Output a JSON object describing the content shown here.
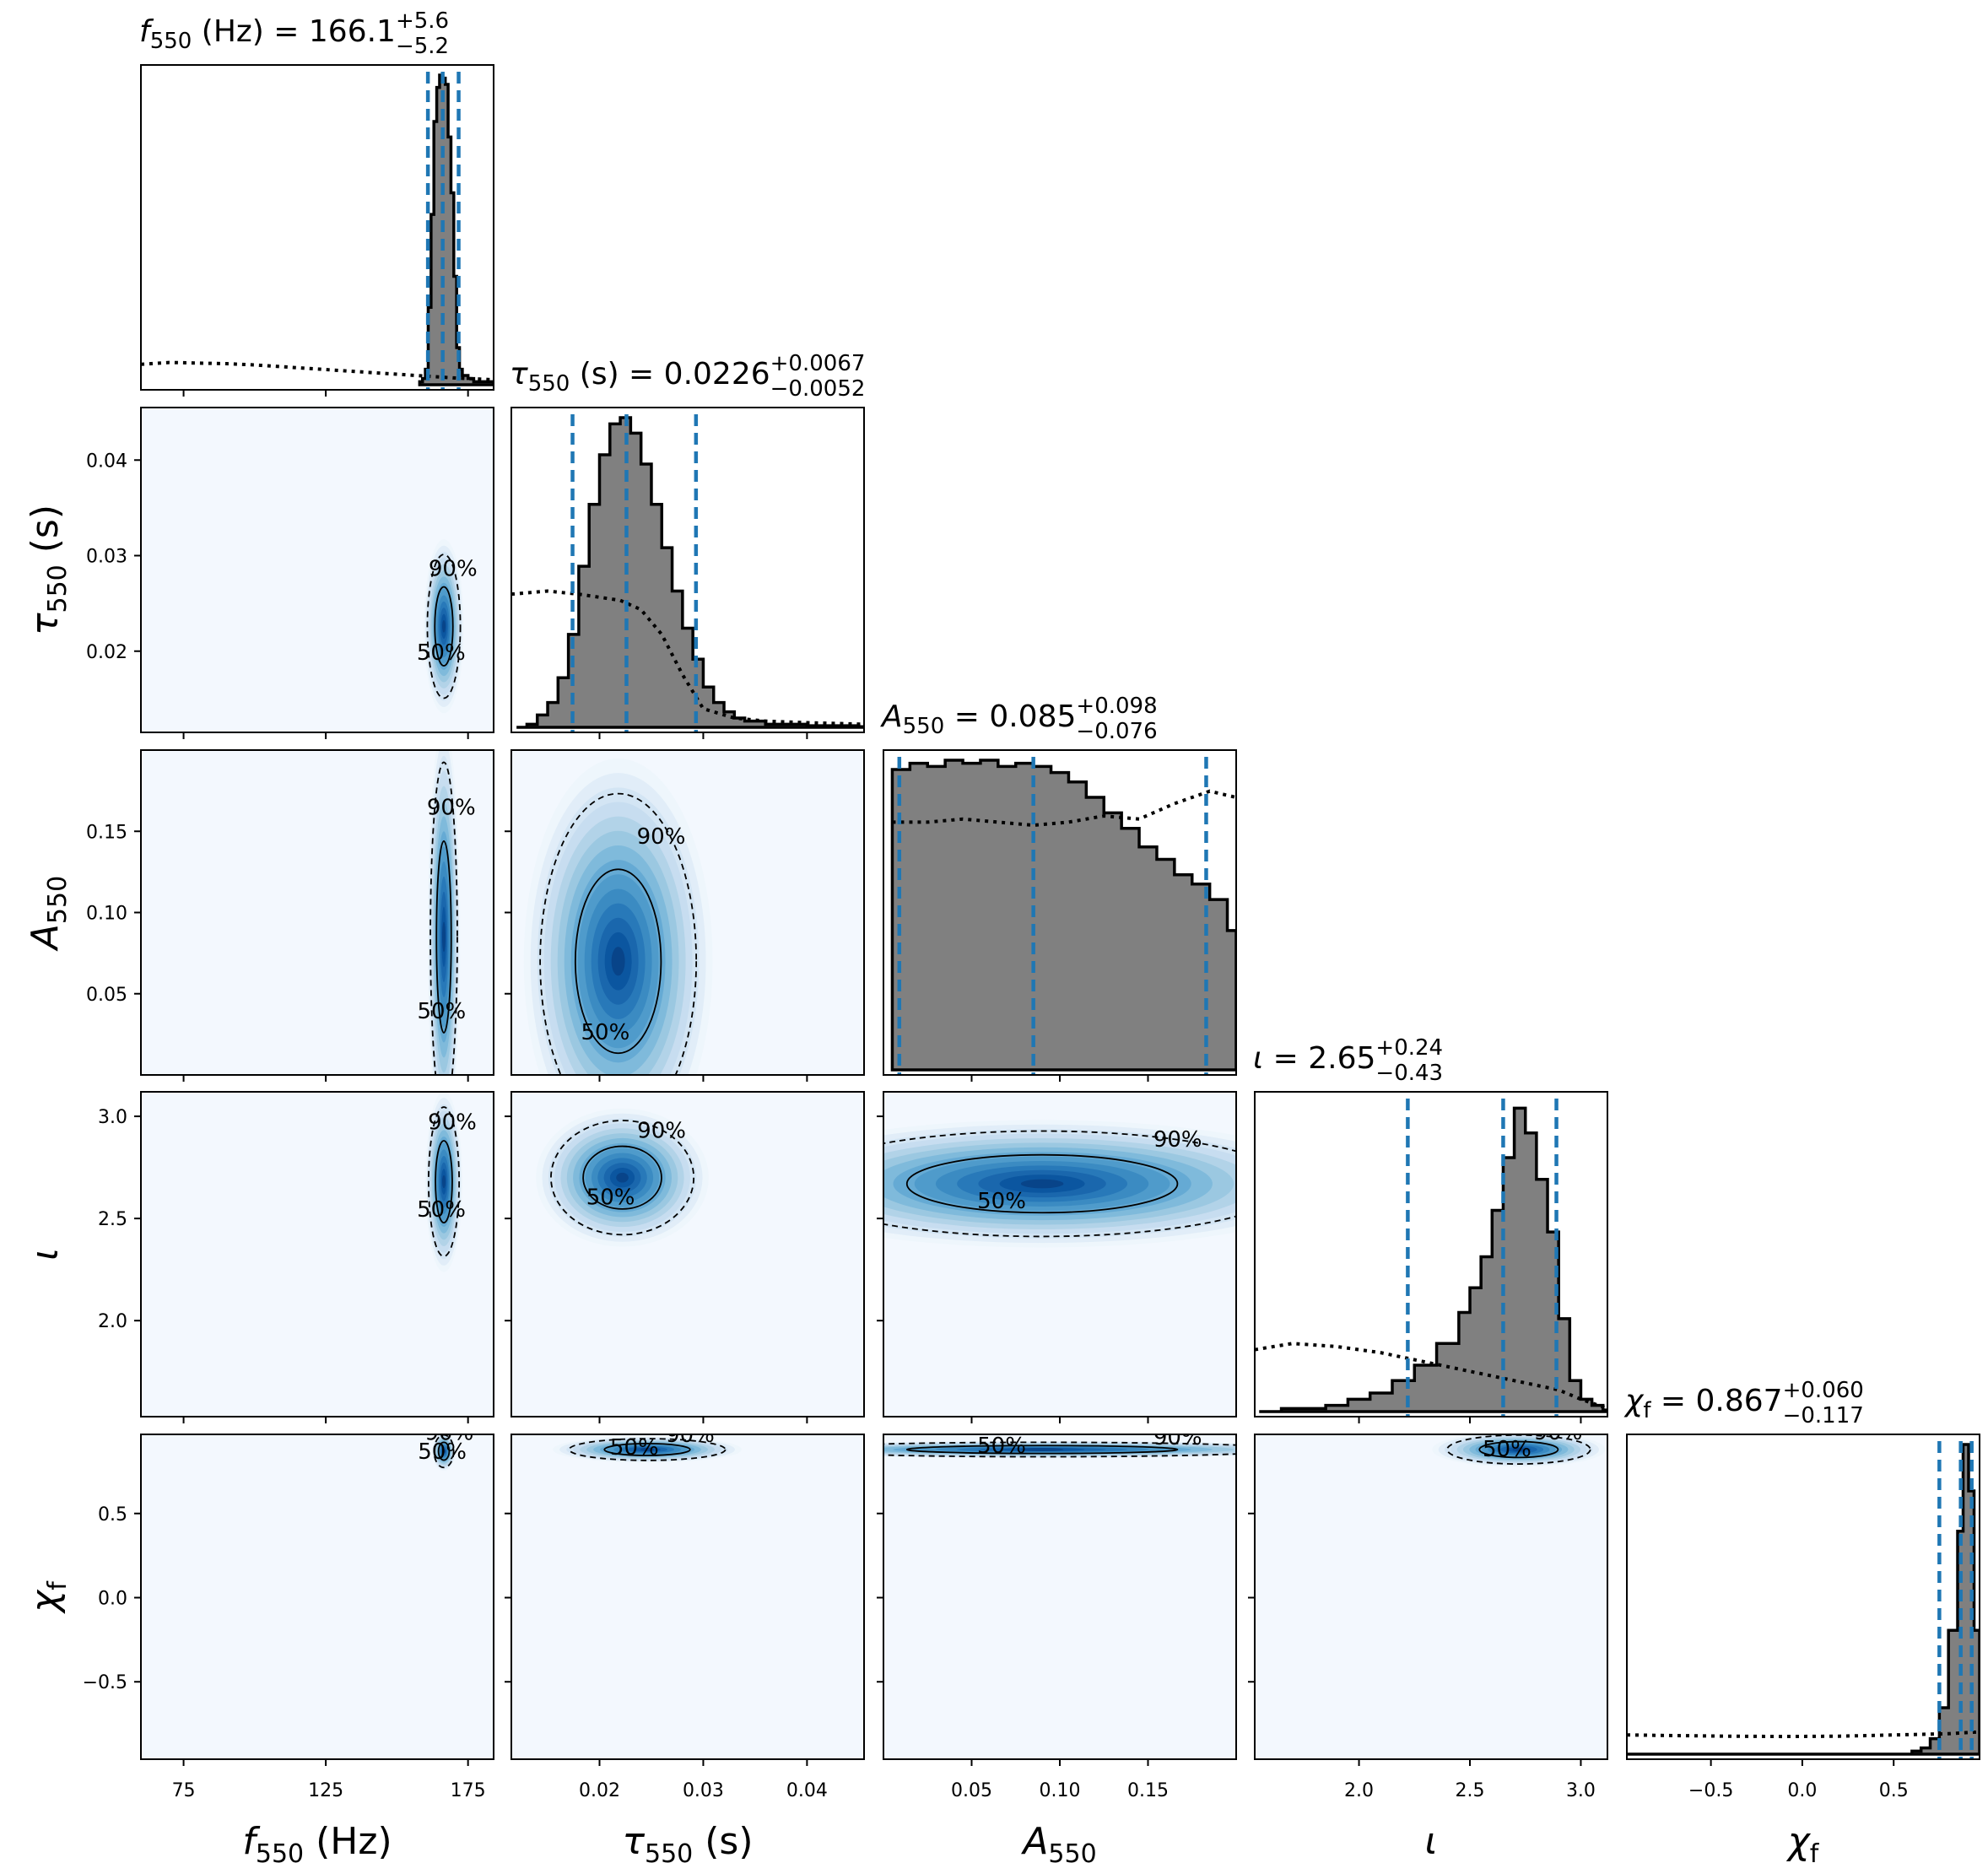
{
  "chart_data": {
    "type": "corner",
    "parameters": [
      {
        "id": "f550",
        "label": "f550 (Hz)",
        "label_base": "f",
        "label_sub": "550",
        "label_unit": " (Hz)",
        "title": {
          "base": "f",
          "sub": "550",
          "unit": " (Hz)",
          "median": "166.1",
          "plus": "+5.6",
          "minus": "−5.2"
        },
        "range": [
          60,
          184
        ],
        "ticks": [
          75,
          125,
          175
        ],
        "tick_labels": [
          "75",
          "125",
          "175"
        ],
        "quantiles": [
          160.9,
          166.1,
          171.7
        ]
      },
      {
        "id": "tau550",
        "label": "τ550 (s)",
        "label_base": "τ",
        "label_sub": "550",
        "label_unit": " (s)",
        "title": {
          "base": "τ",
          "sub": "550",
          "unit": " (s)",
          "median": "0.0226",
          "plus": "+0.0067",
          "minus": "−0.0052"
        },
        "range": [
          0.0115,
          0.0455
        ],
        "ticks": [
          0.02,
          0.03,
          0.04
        ],
        "tick_labels": [
          "0.02",
          "0.03",
          "0.04"
        ],
        "quantiles": [
          0.0174,
          0.0226,
          0.0293
        ]
      },
      {
        "id": "A550",
        "label": "A550",
        "label_base": "A",
        "label_sub": "550",
        "label_unit": "",
        "title": {
          "base": "A",
          "sub": "550",
          "unit": "",
          "median": "0.085",
          "plus": "+0.098",
          "minus": "−0.076"
        },
        "range": [
          0.0,
          0.2
        ],
        "ticks": [
          0.05,
          0.1,
          0.15
        ],
        "tick_labels": [
          "0.05",
          "0.10",
          "0.15"
        ],
        "quantiles": [
          0.009,
          0.085,
          0.183
        ]
      },
      {
        "id": "iota",
        "label": "ι",
        "label_base": "ι",
        "label_sub": "",
        "label_unit": "",
        "title": {
          "base": "ι",
          "sub": "",
          "unit": "",
          "median": "2.65",
          "plus": "+0.24",
          "minus": "−0.43"
        },
        "range": [
          1.53,
          3.12
        ],
        "ticks": [
          2.0,
          2.5,
          3.0
        ],
        "tick_labels": [
          "2.0",
          "2.5",
          "3.0"
        ],
        "quantiles": [
          2.22,
          2.65,
          2.89
        ]
      },
      {
        "id": "chif",
        "label": "χf",
        "label_base": "χ",
        "label_sub": "f",
        "label_unit": "",
        "title": {
          "base": "χ",
          "sub": "f",
          "unit": "",
          "median": "0.867",
          "plus": "+0.060",
          "minus": "−0.117"
        },
        "range": [
          -0.96,
          0.97
        ],
        "ticks": [
          -0.5,
          0.0,
          0.5
        ],
        "tick_labels": [
          "−0.5",
          "0.0",
          "0.5"
        ],
        "quantiles": [
          0.75,
          0.867,
          0.927
        ]
      }
    ],
    "hist1d": [
      {
        "param": "f550",
        "posterior": [
          [
            158,
            0.01
          ],
          [
            159,
            0.02
          ],
          [
            160,
            0.05
          ],
          [
            161,
            0.25
          ],
          [
            162,
            0.55
          ],
          [
            163,
            0.85
          ],
          [
            164,
            0.96
          ],
          [
            165,
            1.0
          ],
          [
            166,
            0.99
          ],
          [
            167,
            0.97
          ],
          [
            168,
            0.8
          ],
          [
            169,
            0.62
          ],
          [
            170,
            0.35
          ],
          [
            171,
            0.12
          ],
          [
            172,
            0.05
          ],
          [
            173,
            0.03
          ],
          [
            174,
            0.03
          ],
          [
            175,
            0.02
          ],
          [
            176,
            0.02
          ],
          [
            177,
            0.01
          ],
          [
            178,
            0.01
          ],
          [
            180,
            0.01
          ]
        ],
        "prior": [
          [
            60,
            0.066
          ],
          [
            70,
            0.072
          ],
          [
            80,
            0.07
          ],
          [
            90,
            0.068
          ],
          [
            100,
            0.064
          ],
          [
            110,
            0.058
          ],
          [
            120,
            0.052
          ],
          [
            130,
            0.046
          ],
          [
            140,
            0.04
          ],
          [
            150,
            0.034
          ],
          [
            160,
            0.028
          ],
          [
            170,
            0.022
          ],
          [
            180,
            0.018
          ],
          [
            184,
            0.016
          ]
        ]
      },
      {
        "param": "tau550",
        "posterior": [
          [
            0.012,
            0.0
          ],
          [
            0.013,
            0.01
          ],
          [
            0.014,
            0.04
          ],
          [
            0.015,
            0.08
          ],
          [
            0.016,
            0.16
          ],
          [
            0.017,
            0.3
          ],
          [
            0.018,
            0.52
          ],
          [
            0.019,
            0.72
          ],
          [
            0.02,
            0.88
          ],
          [
            0.021,
            0.98
          ],
          [
            0.022,
            1.0
          ],
          [
            0.023,
            0.95
          ],
          [
            0.024,
            0.85
          ],
          [
            0.025,
            0.72
          ],
          [
            0.026,
            0.58
          ],
          [
            0.027,
            0.44
          ],
          [
            0.028,
            0.32
          ],
          [
            0.029,
            0.22
          ],
          [
            0.03,
            0.13
          ],
          [
            0.031,
            0.08
          ],
          [
            0.032,
            0.05
          ],
          [
            0.033,
            0.03
          ],
          [
            0.034,
            0.02
          ],
          [
            0.036,
            0.01
          ],
          [
            0.04,
            0.005
          ],
          [
            0.045,
            0.002
          ]
        ],
        "prior": [
          [
            0.0115,
            0.43
          ],
          [
            0.015,
            0.44
          ],
          [
            0.018,
            0.43
          ],
          [
            0.02,
            0.42
          ],
          [
            0.022,
            0.41
          ],
          [
            0.024,
            0.38
          ],
          [
            0.026,
            0.3
          ],
          [
            0.028,
            0.17
          ],
          [
            0.03,
            0.06
          ],
          [
            0.033,
            0.03
          ],
          [
            0.036,
            0.02
          ],
          [
            0.04,
            0.015
          ],
          [
            0.0455,
            0.01
          ]
        ]
      },
      {
        "param": "A550",
        "posterior": [
          [
            0.005,
            0.97
          ],
          [
            0.015,
            0.99
          ],
          [
            0.025,
            0.98
          ],
          [
            0.035,
            1.0
          ],
          [
            0.045,
            0.99
          ],
          [
            0.055,
            1.0
          ],
          [
            0.065,
            0.98
          ],
          [
            0.075,
            0.99
          ],
          [
            0.085,
            0.98
          ],
          [
            0.095,
            0.96
          ],
          [
            0.105,
            0.93
          ],
          [
            0.115,
            0.88
          ],
          [
            0.125,
            0.83
          ],
          [
            0.135,
            0.78
          ],
          [
            0.145,
            0.72
          ],
          [
            0.155,
            0.68
          ],
          [
            0.165,
            0.63
          ],
          [
            0.175,
            0.6
          ],
          [
            0.185,
            0.55
          ],
          [
            0.195,
            0.45
          ]
        ],
        "prior": [
          [
            0.005,
            0.8
          ],
          [
            0.025,
            0.8
          ],
          [
            0.045,
            0.81
          ],
          [
            0.065,
            0.8
          ],
          [
            0.085,
            0.79
          ],
          [
            0.105,
            0.8
          ],
          [
            0.125,
            0.82
          ],
          [
            0.145,
            0.81
          ],
          [
            0.165,
            0.86
          ],
          [
            0.185,
            0.9
          ],
          [
            0.2,
            0.88
          ]
        ]
      },
      {
        "param": "iota",
        "posterior": [
          [
            1.55,
            0.0
          ],
          [
            1.65,
            0.01
          ],
          [
            1.75,
            0.01
          ],
          [
            1.85,
            0.02
          ],
          [
            1.95,
            0.04
          ],
          [
            2.05,
            0.06
          ],
          [
            2.15,
            0.1
          ],
          [
            2.25,
            0.15
          ],
          [
            2.35,
            0.22
          ],
          [
            2.45,
            0.32
          ],
          [
            2.5,
            0.4
          ],
          [
            2.55,
            0.5
          ],
          [
            2.6,
            0.65
          ],
          [
            2.65,
            0.82
          ],
          [
            2.7,
            0.98
          ],
          [
            2.75,
            0.9
          ],
          [
            2.8,
            0.75
          ],
          [
            2.85,
            0.58
          ],
          [
            2.9,
            0.3
          ],
          [
            2.95,
            0.1
          ],
          [
            3.0,
            0.04
          ],
          [
            3.05,
            0.02
          ],
          [
            3.1,
            0.005
          ]
        ],
        "prior": [
          [
            1.53,
            0.2
          ],
          [
            1.7,
            0.22
          ],
          [
            1.9,
            0.21
          ],
          [
            2.1,
            0.19
          ],
          [
            2.3,
            0.16
          ],
          [
            2.5,
            0.13
          ],
          [
            2.7,
            0.1
          ],
          [
            2.9,
            0.07
          ],
          [
            3.0,
            0.04
          ],
          [
            3.12,
            0.01
          ]
        ]
      },
      {
        "param": "chif",
        "posterior": [
          [
            -0.96,
            0.0
          ],
          [
            0.5,
            0.0
          ],
          [
            0.6,
            0.01
          ],
          [
            0.65,
            0.02
          ],
          [
            0.7,
            0.05
          ],
          [
            0.75,
            0.15
          ],
          [
            0.8,
            0.4
          ],
          [
            0.85,
            0.72
          ],
          [
            0.88,
            1.0
          ],
          [
            0.91,
            0.85
          ],
          [
            0.94,
            0.4
          ],
          [
            0.97,
            0.05
          ]
        ],
        "prior": [
          [
            -0.96,
            0.062
          ],
          [
            -0.7,
            0.06
          ],
          [
            -0.4,
            0.058
          ],
          [
            -0.1,
            0.057
          ],
          [
            0.2,
            0.058
          ],
          [
            0.5,
            0.062
          ],
          [
            0.8,
            0.066
          ],
          [
            0.97,
            0.072
          ]
        ]
      }
    ],
    "hist2d": [
      {
        "x": "f550",
        "y": "tau550",
        "mode": [
          166.5,
          0.0226
        ],
        "spread": [
          2.7,
          0.0035
        ],
        "level_labels": [
          "90%",
          "50%"
        ]
      },
      {
        "x": "f550",
        "y": "A550",
        "mode": [
          166.5,
          0.085
        ],
        "spread": [
          2.2,
          0.05
        ],
        "level_labels": [
          "90%",
          "50%"
        ]
      },
      {
        "x": "tau550",
        "y": "A550",
        "mode": [
          0.0218,
          0.07
        ],
        "spread": [
          0.0035,
          0.048
        ],
        "level_labels": [
          "90%",
          "50%"
        ]
      },
      {
        "x": "f550",
        "y": "iota",
        "mode": [
          166.5,
          2.68
        ],
        "spread": [
          2.5,
          0.17
        ],
        "level_labels": [
          "90%",
          "50%"
        ]
      },
      {
        "x": "tau550",
        "y": "iota",
        "mode": [
          0.0222,
          2.7
        ],
        "spread": [
          0.0032,
          0.13
        ],
        "level_labels": [
          "90%",
          "50%"
        ]
      },
      {
        "x": "A550",
        "y": "iota",
        "mode": [
          0.09,
          2.67
        ],
        "spread": [
          0.065,
          0.12
        ],
        "level_labels": [
          "90%",
          "50%"
        ]
      },
      {
        "x": "f550",
        "y": "chif",
        "mode": [
          166.5,
          0.87
        ],
        "spread": [
          1.6,
          0.045
        ],
        "level_labels": [
          "90%",
          "50%"
        ]
      },
      {
        "x": "tau550",
        "y": "chif",
        "mode": [
          0.0246,
          0.88
        ],
        "spread": [
          0.0035,
          0.03
        ],
        "level_labels": [
          "90%",
          "50%"
        ]
      },
      {
        "x": "A550",
        "y": "chif",
        "mode": [
          0.09,
          0.88
        ],
        "spread": [
          0.065,
          0.02
        ],
        "level_labels": [
          "90%",
          "50%"
        ]
      },
      {
        "x": "iota",
        "y": "chif",
        "mode": [
          2.72,
          0.88
        ],
        "spread": [
          0.15,
          0.04
        ],
        "level_labels": [
          "90%",
          "50%"
        ]
      }
    ],
    "colors": {
      "fill": "#808080",
      "quantile_line": "#1f77b4",
      "density_high": "#08306b",
      "density_mid": "#2171b5",
      "density_low": "#f7fbff"
    },
    "grid": false,
    "legend": "none"
  }
}
